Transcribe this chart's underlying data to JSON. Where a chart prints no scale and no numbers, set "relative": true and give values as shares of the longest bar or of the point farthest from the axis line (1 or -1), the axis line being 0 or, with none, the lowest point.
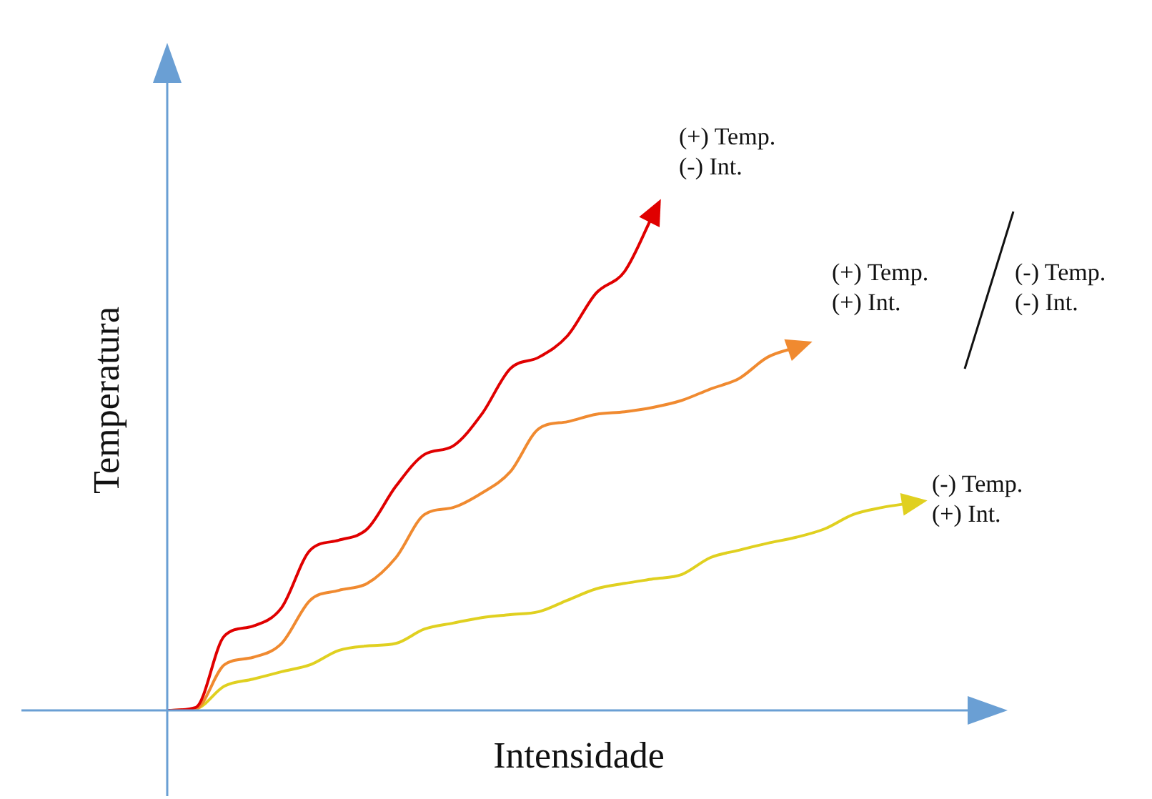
{
  "chart_data": {
    "type": "line",
    "xlabel": "Intensidade",
    "ylabel": "Temperatura",
    "relative": true,
    "legend": false,
    "grid": false,
    "tick_labels": false,
    "marker": "none",
    "line_style": "solid",
    "categories": [
      null,
      null,
      null,
      null,
      null,
      null,
      null,
      null,
      null,
      null,
      null,
      null,
      null,
      null,
      null,
      null,
      null,
      null,
      null,
      null,
      null,
      null,
      null,
      null,
      null,
      null,
      null,
      null,
      null,
      null
    ],
    "series": [
      {
        "color": "#e00000",
        "values": [
          0,
          0.006,
          0.15,
          0.17,
          0.207,
          0.323,
          0.343,
          0.366,
          0.452,
          0.516,
          0.533,
          0.597,
          0.689,
          0.712,
          0.755,
          0.841,
          0.885,
          1,
          null,
          null,
          null,
          null,
          null,
          null,
          null,
          null,
          null,
          null,
          null,
          null
        ]
      },
      {
        "color": "#f08a30",
        "values": [
          0,
          0.003,
          0.092,
          0.107,
          0.135,
          0.222,
          0.242,
          0.256,
          0.308,
          0.395,
          0.409,
          0.438,
          0.481,
          0.568,
          0.582,
          0.597,
          0.602,
          0.611,
          0.625,
          0.648,
          0.669,
          0.712,
          0.732,
          null,
          null,
          null,
          null,
          null,
          null,
          null
        ]
      },
      {
        "color": "#e0d020",
        "values": [
          0,
          0.003,
          0.049,
          0.063,
          0.078,
          0.092,
          0.121,
          0.13,
          0.135,
          0.164,
          0.176,
          0.187,
          0.193,
          0.199,
          0.222,
          0.245,
          0.256,
          0.265,
          0.274,
          0.308,
          0.323,
          0.337,
          0.349,
          0.366,
          0.395,
          0.409,
          0.418,
          null,
          null,
          null
        ]
      }
    ],
    "annotations": [
      "(+) Temp.\n(-) Int.",
      "(+) Temp.\n(+) Int.",
      "(-) Temp.\n(-) Int.",
      "(-) Temp.\n(+) Int."
    ]
  }
}
